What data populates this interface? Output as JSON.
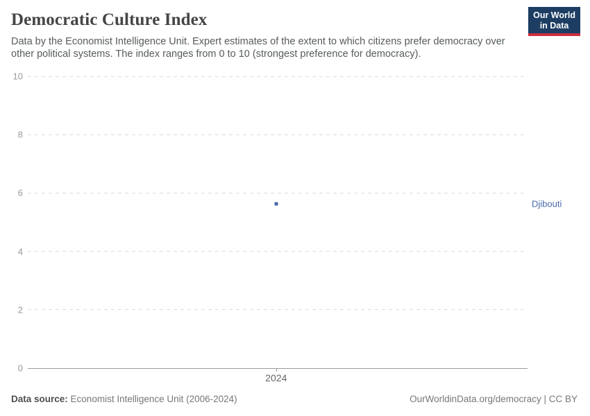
{
  "header": {
    "title": "Democratic Culture Index",
    "subtitle": "Data by the Economist Intelligence Unit. Expert estimates of the extent to which citizens prefer democracy over other political systems. The index ranges from 0 to 10 (strongest preference for democracy)."
  },
  "logo": {
    "line1": "Our World",
    "line2": "in Data",
    "bg_color": "#1d3d63",
    "bar_color": "#cc2e41"
  },
  "chart_data": {
    "type": "scatter",
    "title": "Democratic Culture Index",
    "x": [
      2024
    ],
    "xtick_labels": [
      "2024"
    ],
    "series": [
      {
        "name": "Djibouti",
        "values": [
          5.63
        ],
        "color": "#4a69a8"
      }
    ],
    "xlabel": "",
    "ylabel": "",
    "ylim": [
      0,
      10
    ],
    "yticks": [
      0,
      2,
      4,
      6,
      8,
      10
    ],
    "grid": "horizontal-dashed",
    "gridline_color": "#dcdcdc",
    "axis_color": "#999999",
    "tick_label_color": "#999999",
    "x_fraction": 0.497,
    "legend_position": "right-of-point"
  },
  "footer": {
    "source_label": "Data source:",
    "source_value": "Economist Intelligence Unit (2006-2024)",
    "credit": "OurWorldinData.org/democracy | CC BY"
  }
}
